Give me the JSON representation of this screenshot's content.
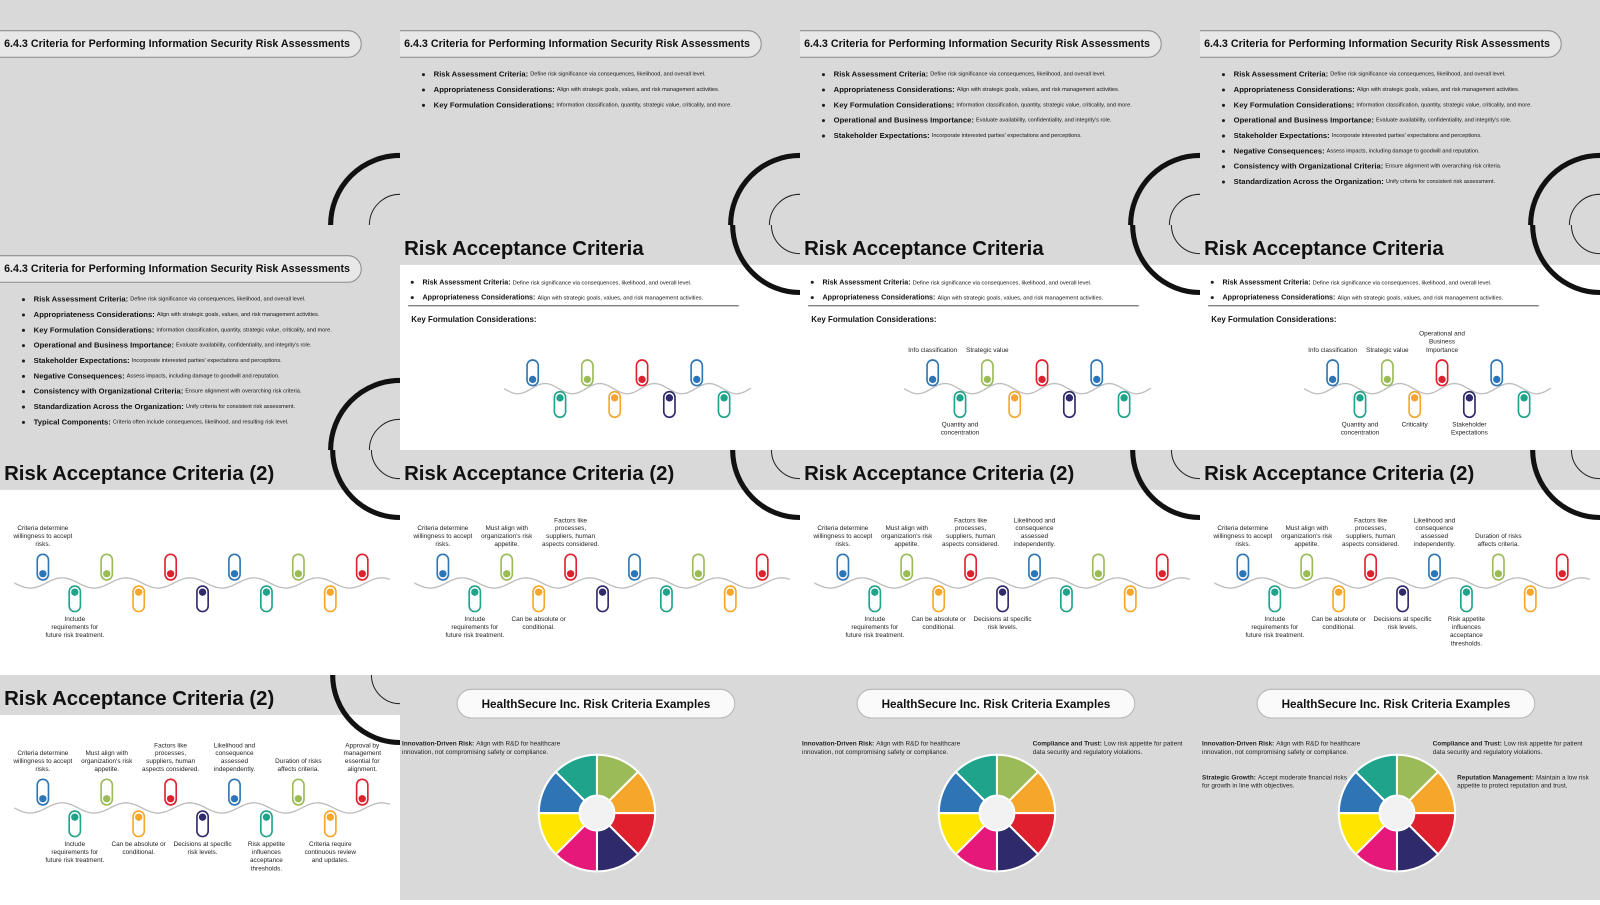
{
  "slides": [
    {
      "title": "6.4.3 Criteria for Performing Information Security Risk Assessments"
    },
    {
      "title": "6.4.3 Criteria for Performing Information Security Risk Assessments",
      "bullets": [
        {
          "term": "Risk Assessment Criteria:",
          "text": "Define risk significance via consequences, likelihood, and overall level."
        },
        {
          "term": "Appropriateness Considerations:",
          "text": "Align with strategic goals, values, and risk management activities."
        },
        {
          "term": "Key Formulation Considerations:",
          "text": "Information classification, quantity, strategic value, criticality, and more."
        }
      ]
    },
    {
      "title": "6.4.3 Criteria for Performing Information Security Risk Assessments",
      "bullets": [
        {
          "term": "Risk Assessment Criteria:",
          "text": "Define risk significance via consequences, likelihood, and overall level."
        },
        {
          "term": "Appropriateness Considerations:",
          "text": "Align with strategic goals, values, and risk management activities."
        },
        {
          "term": "Key Formulation Considerations:",
          "text": "Information classification, quantity, strategic value, criticality, and more."
        },
        {
          "term": "Operational and Business Importance:",
          "text": "Evaluate availability, confidentiality, and integrity's role."
        },
        {
          "term": "Stakeholder Expectations:",
          "text": "Incorporate interested parties' expectations and perceptions."
        }
      ]
    },
    {
      "title": "6.4.3 Criteria for Performing Information Security Risk Assessments",
      "bullets": [
        {
          "term": "Risk Assessment Criteria:",
          "text": "Define risk significance via consequences, likelihood, and overall level."
        },
        {
          "term": "Appropriateness Considerations:",
          "text": "Align with strategic goals, values, and risk management activities."
        },
        {
          "term": "Key Formulation Considerations:",
          "text": "Information classification, quantity, strategic value, criticality, and more."
        },
        {
          "term": "Operational and Business Importance:",
          "text": "Evaluate availability, confidentiality, and integrity's role."
        },
        {
          "term": "Stakeholder Expectations:",
          "text": "Incorporate interested parties' expectations and perceptions."
        },
        {
          "term": "Negative Consequences:",
          "text": "Assess impacts, including damage to goodwill and reputation."
        },
        {
          "term": "Consistency with Organizational Criteria:",
          "text": "Ensure alignment with overarching risk criteria."
        },
        {
          "term": "Standardization Across the Organization:",
          "text": "Unify criteria for consistent risk assessment."
        }
      ]
    },
    {
      "title": "6.4.3 Criteria for Performing Information Security Risk Assessments",
      "bullets": [
        {
          "term": "Risk Assessment Criteria:",
          "text": "Define risk significance via consequences, likelihood, and overall level."
        },
        {
          "term": "Appropriateness Considerations:",
          "text": "Align with strategic goals, values, and risk management activities."
        },
        {
          "term": "Key Formulation Considerations:",
          "text": "Information classification, quantity, strategic value, criticality, and more."
        },
        {
          "term": "Operational and Business Importance:",
          "text": "Evaluate availability, confidentiality, and integrity's role."
        },
        {
          "term": "Stakeholder Expectations:",
          "text": "Incorporate interested parties' expectations and perceptions."
        },
        {
          "term": "Negative Consequences:",
          "text": "Assess impacts, including damage to goodwill and reputation."
        },
        {
          "term": "Consistency with Organizational Criteria:",
          "text": "Ensure alignment with overarching risk criteria."
        },
        {
          "term": "Standardization Across the Organization:",
          "text": "Unify criteria for consistent risk assessment."
        },
        {
          "term": "Typical Components:",
          "text": "Criteria often include consequences, likelihood, and resulting risk level."
        }
      ]
    },
    {
      "title": "Risk Acceptance Criteria",
      "bullets": [
        {
          "term": "Risk Assessment Criteria:",
          "text": "Define risk significance via consequences, likelihood, and overall level."
        },
        {
          "term": "Appropriateness Considerations:",
          "text": "Align with strategic goals, values, and risk management activities."
        }
      ],
      "subheading": "Key Formulation Considerations:",
      "upper_labels": [],
      "lower_labels": []
    },
    {
      "title": "Risk Acceptance Criteria",
      "bullets": [
        {
          "term": "Risk Assessment Criteria:",
          "text": "Define risk significance via consequences, likelihood, and overall level."
        },
        {
          "term": "Appropriateness Considerations:",
          "text": "Align with strategic goals, values, and risk management activities."
        }
      ],
      "subheading": "Key Formulation Considerations:",
      "upper_labels": [
        "Info classification",
        "Strategic value"
      ],
      "lower_labels": [
        "Quantity and concentration"
      ]
    },
    {
      "title": "Risk Acceptance Criteria",
      "bullets": [
        {
          "term": "Risk Assessment Criteria:",
          "text": "Define risk significance via consequences, likelihood, and overall level."
        },
        {
          "term": "Appropriateness Considerations:",
          "text": "Align with strategic goals, values, and risk management activities."
        }
      ],
      "subheading": "Key Formulation Considerations:",
      "upper_labels": [
        "Info classification",
        "Strategic value",
        "Operational and Business Importance"
      ],
      "lower_labels": [
        "Quantity and concentration",
        "Criticality",
        "Stakeholder Expectations"
      ]
    },
    {
      "title": "Risk Acceptance Criteria (2)",
      "upper_labels": [
        "Criteria determine willingness to accept risks."
      ],
      "lower_labels": [
        "Include requirements for future risk treatment."
      ]
    },
    {
      "title": "Risk Acceptance Criteria (2)",
      "upper_labels": [
        "Criteria determine willingness to accept risks.",
        "Must align with organization's risk appetite.",
        "Factors like processes, suppliers, human aspects considered."
      ],
      "lower_labels": [
        "Include requirements for future risk treatment.",
        "Can be absolute or conditional."
      ]
    },
    {
      "title": "Risk Acceptance Criteria (2)",
      "upper_labels": [
        "Criteria determine willingness to accept risks.",
        "Must align with organization's risk appetite.",
        "Factors like processes, suppliers, human aspects considered.",
        "Likelihood and consequence assessed independently."
      ],
      "lower_labels": [
        "Include requirements for future risk treatment.",
        "Can be absolute or conditional.",
        "Decisions at specific risk levels."
      ]
    },
    {
      "title": "Risk Acceptance Criteria (2)",
      "upper_labels": [
        "Criteria determine willingness to accept risks.",
        "Must align with organization's risk appetite.",
        "Factors like processes, suppliers, human aspects considered.",
        "Likelihood and consequence assessed independently.",
        "Duration of risks affects criteria."
      ],
      "lower_labels": [
        "Include requirements for future risk treatment.",
        "Can be absolute or conditional.",
        "Decisions at specific risk levels.",
        "Risk appetite influences acceptance thresholds."
      ]
    },
    {
      "title": "Risk Acceptance Criteria (2)",
      "upper_labels": [
        "Criteria determine willingness to accept risks.",
        "Must align with organization's risk appetite.",
        "Factors like processes, suppliers, human aspects considered.",
        "Likelihood and consequence assessed independently.",
        "Duration of risks affects criteria.",
        "Approval by management essential for alignment."
      ],
      "lower_labels": [
        "Include requirements for future risk treatment.",
        "Can be absolute or conditional.",
        "Decisions at specific risk levels.",
        "Risk appetite influences acceptance thresholds.",
        "Criteria require continuous review and updates."
      ]
    },
    {
      "title": "HealthSecure Inc. Risk Criteria Examples",
      "examples": [
        {
          "term": "Innovation-Driven Risk:",
          "text": "Align with R&D for healthcare innovation, not compromising safety or compliance."
        }
      ]
    },
    {
      "title": "HealthSecure Inc. Risk Criteria Examples",
      "examples": [
        {
          "term": "Innovation-Driven Risk:",
          "text": "Align with R&D for healthcare innovation, not compromising safety or compliance."
        },
        {
          "term": "Compliance and Trust:",
          "text": "Low risk appetite for patient data security and regulatory violations."
        }
      ]
    },
    {
      "title": "HealthSecure Inc. Risk Criteria Examples",
      "examples": [
        {
          "term": "Innovation-Driven Risk:",
          "text": "Align with R&D for healthcare innovation, not compromising safety or compliance."
        },
        {
          "term": "Compliance and Trust:",
          "text": "Low risk appetite for patient data security and regulatory violations."
        },
        {
          "term": "Strategic Growth:",
          "text": "Accept moderate financial risks for growth in line with objectives."
        },
        {
          "term": "Reputation Management:",
          "text": "Maintain a low risk appetite to protect reputation and trust."
        }
      ]
    }
  ]
}
